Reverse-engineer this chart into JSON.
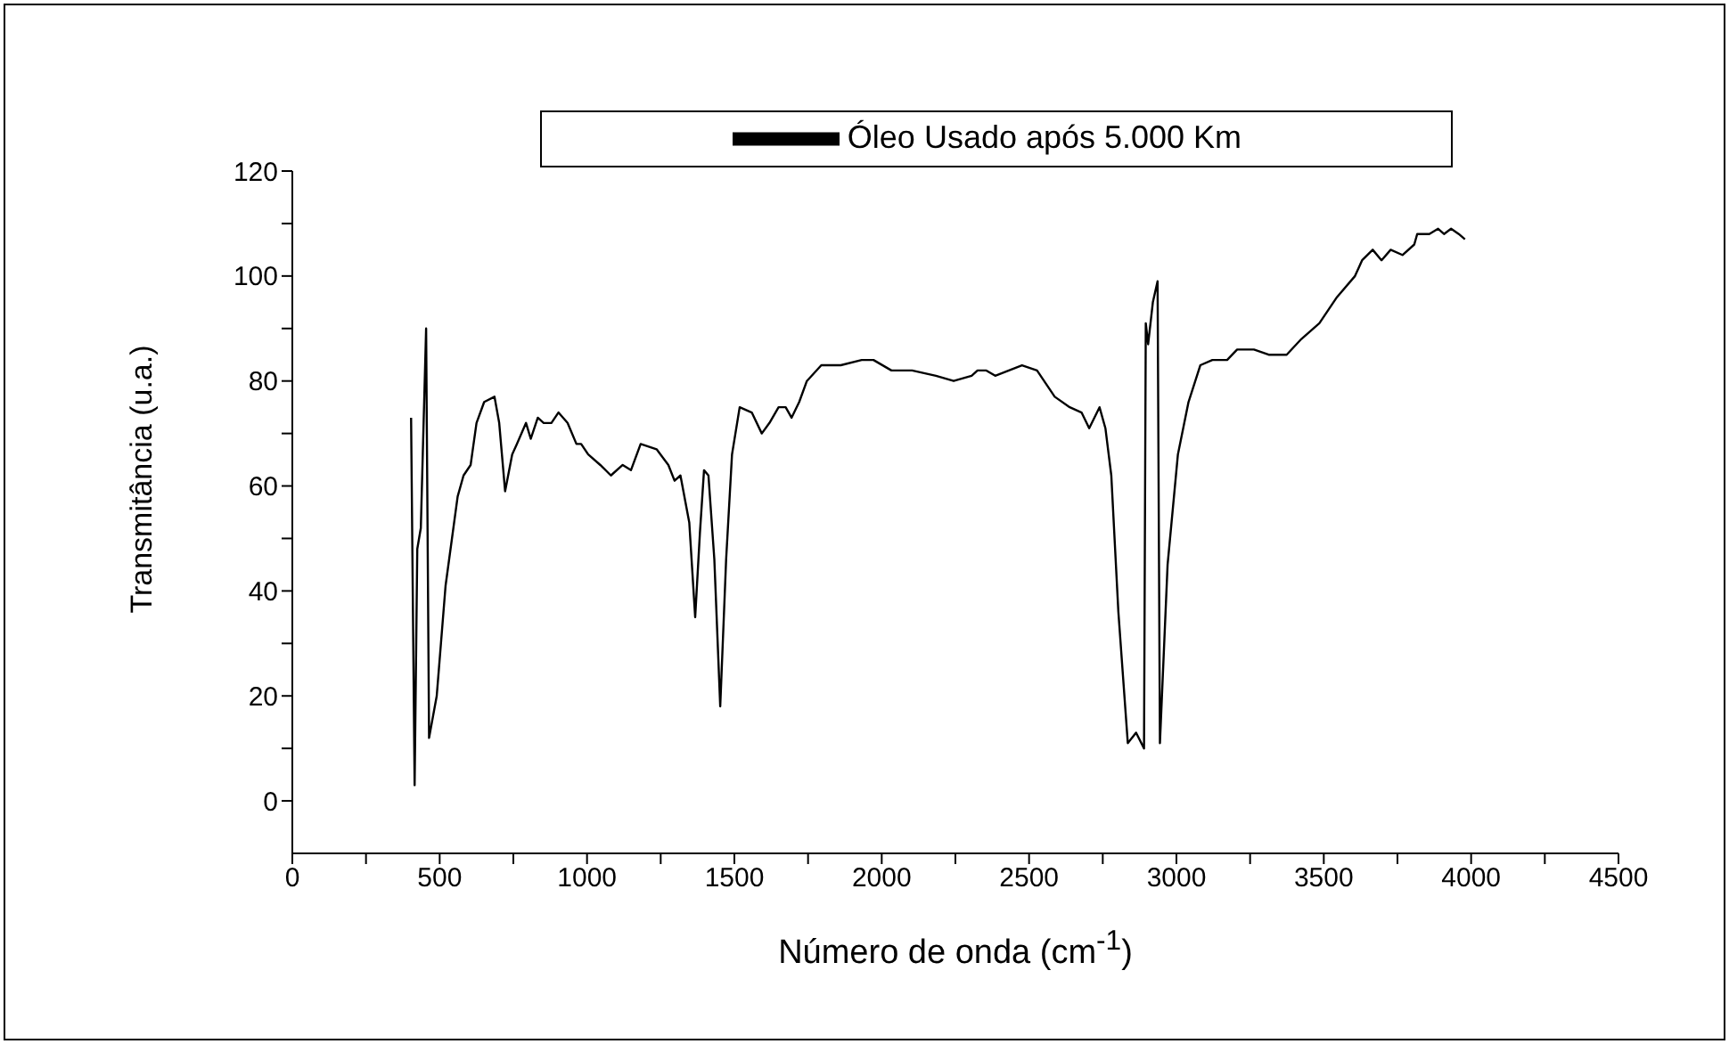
{
  "chart_data": {
    "type": "line",
    "xlabel": "Número de onda (cm$^{-1}$)",
    "ylabel": "Transmitância (u.a.)",
    "xlim": [
      0,
      4500
    ],
    "xticks": [
      0,
      {
        "value": 250,
        "label": null
      },
      500,
      {
        "value": 750,
        "label": null
      },
      1000,
      {
        "value": 1250,
        "label": null
      },
      1500,
      {
        "value": 1750,
        "label": null
      },
      2000,
      {
        "value": 2250,
        "label": null
      },
      2500,
      {
        "value": 2750,
        "label": null
      },
      3000,
      {
        "value": 3250,
        "label": null
      },
      3500,
      {
        "value": 3750,
        "label": null
      },
      4000,
      {
        "value": 4250,
        "label": null
      },
      4500
    ],
    "ylim": [
      -10,
      120
    ],
    "yticks": [
      0,
      {
        "value": 10,
        "label": null
      },
      20,
      {
        "value": 30,
        "label": null
      },
      40,
      {
        "value": 50,
        "label": null
      },
      60,
      {
        "value": 70,
        "label": null
      },
      80,
      {
        "value": 90,
        "label": null
      },
      100,
      {
        "value": 110,
        "label": null
      },
      120
    ],
    "grid": false,
    "legend": "top",
    "marker": "none",
    "line_style": "solid",
    "series": [
      {
        "name": "Óleo Usado após 5.000 Km",
        "color": "#000000",
        "x": [
          403,
          415,
          424,
          436,
          454,
          464,
          490,
          520,
          561,
          581,
          605,
          625,
          651,
          686,
          702,
          722,
          746,
          762,
          793,
          809,
          833,
          853,
          879,
          903,
          934,
          964,
          980,
          1004,
          1045,
          1081,
          1121,
          1149,
          1182,
          1236,
          1276,
          1297,
          1317,
          1347,
          1367,
          1383,
          1397,
          1412,
          1432,
          1452,
          1472,
          1492,
          1518,
          1559,
          1593,
          1619,
          1650,
          1674,
          1694,
          1720,
          1746,
          1795,
          1861,
          1932,
          1972,
          2033,
          2103,
          2184,
          2244,
          2305,
          2325,
          2355,
          2385,
          2476,
          2527,
          2587,
          2638,
          2678,
          2704,
          2739,
          2759,
          2779,
          2803,
          2835,
          2863,
          2890,
          2896,
          2904,
          2920,
          2936,
          2944,
          2970,
          3005,
          3041,
          3081,
          3122,
          3172,
          3206,
          3263,
          3313,
          3374,
          3424,
          3485,
          3545,
          3606,
          3630,
          3666,
          3696,
          3727,
          3767,
          3807,
          3817,
          3858,
          3888,
          3908,
          3932,
          3958,
          3979
        ],
        "values": [
          73,
          3,
          48,
          52,
          90,
          12,
          20,
          41,
          58,
          62,
          64,
          72,
          76,
          77,
          72,
          59,
          66,
          68,
          72,
          69,
          73,
          72,
          72,
          74,
          72,
          68,
          68,
          66,
          64,
          62,
          64,
          63,
          68,
          67,
          64,
          61,
          62,
          53,
          35,
          51,
          63,
          62,
          46,
          18,
          46,
          66,
          75,
          74,
          70,
          72,
          75,
          75,
          73,
          76,
          80,
          83,
          83,
          84,
          84,
          82,
          82,
          81,
          80,
          81,
          82,
          82,
          81,
          83,
          82,
          77,
          75,
          74,
          71,
          75,
          71,
          62,
          36,
          11,
          13,
          10,
          91,
          87,
          95,
          99,
          11,
          45,
          66,
          76,
          83,
          84,
          84,
          86,
          86,
          85,
          85,
          88,
          91,
          96,
          100,
          103,
          105,
          103,
          105,
          104,
          106,
          108,
          108,
          109,
          108,
          109,
          108,
          107
        ]
      }
    ]
  }
}
